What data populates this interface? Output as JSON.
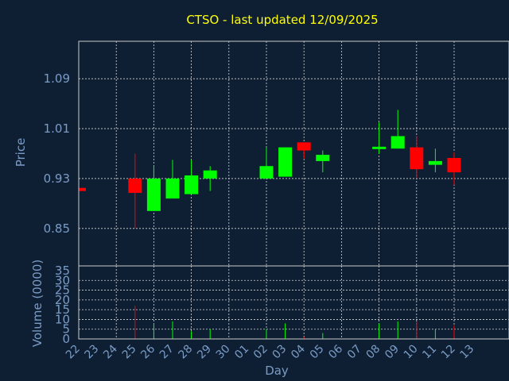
{
  "chart_data": {
    "type": "candlestick",
    "title": "CTSO - last updated 12/09/2025",
    "xlabel": "Day",
    "ylabel": "Price",
    "volume_label": "Volume (0000)",
    "ylim": [
      0.79,
      1.15
    ],
    "yticks": [
      0.85,
      0.93,
      1.01,
      1.09
    ],
    "ytick_labels": [
      "0.85",
      "0.93",
      "1.01",
      "1.09"
    ],
    "volume_ylim": [
      0,
      35
    ],
    "volume_ticks": [
      0,
      5,
      10,
      15,
      20,
      25,
      30,
      35
    ],
    "volume_tick_labels": [
      "0",
      "5",
      "10",
      "15",
      "20",
      "25",
      "30",
      "35"
    ],
    "x_labels": [
      "22",
      "23",
      "24",
      "25",
      "26",
      "27",
      "28",
      "29",
      "30",
      "01",
      "02",
      "03",
      "04",
      "05",
      "06",
      "07",
      "08",
      "09",
      "10",
      "11",
      "12",
      "13"
    ],
    "up_color": "#00ff00",
    "down_color": "#ff0000",
    "candles": [
      {
        "day": "22",
        "open": 0.915,
        "high": 0.915,
        "low": 0.91,
        "close": 0.91,
        "volume": 0
      },
      {
        "day": "25",
        "open": 0.93,
        "high": 0.97,
        "low": 0.85,
        "close": 0.907,
        "volume": 17
      },
      {
        "day": "26",
        "open": 0.878,
        "high": 0.95,
        "low": 0.878,
        "close": 0.93,
        "volume": 8
      },
      {
        "day": "27",
        "open": 0.898,
        "high": 0.96,
        "low": 0.898,
        "close": 0.93,
        "volume": 9
      },
      {
        "day": "28",
        "open": 0.905,
        "high": 0.96,
        "low": 0.905,
        "close": 0.935,
        "volume": 4
      },
      {
        "day": "29",
        "open": 0.93,
        "high": 0.95,
        "low": 0.91,
        "close": 0.943,
        "volume": 5
      },
      {
        "day": "02",
        "open": 0.93,
        "high": 0.98,
        "low": 0.93,
        "close": 0.95,
        "volume": 5
      },
      {
        "day": "03",
        "open": 0.933,
        "high": 0.98,
        "low": 0.933,
        "close": 0.98,
        "volume": 8
      },
      {
        "day": "04",
        "open": 0.988,
        "high": 0.988,
        "low": 0.962,
        "close": 0.975,
        "volume": 1
      },
      {
        "day": "05",
        "open": 0.958,
        "high": 0.975,
        "low": 0.94,
        "close": 0.968,
        "volume": 3
      },
      {
        "day": "08",
        "open": 0.978,
        "high": 1.02,
        "low": 0.97,
        "close": 0.981,
        "volume": 8
      },
      {
        "day": "09",
        "open": 0.978,
        "high": 1.04,
        "low": 0.978,
        "close": 0.998,
        "volume": 9
      },
      {
        "day": "10",
        "open": 0.98,
        "high": 0.998,
        "low": 0.93,
        "close": 0.945,
        "volume": 9
      },
      {
        "day": "11",
        "open": 0.952,
        "high": 0.978,
        "low": 0.94,
        "close": 0.958,
        "volume": 5
      },
      {
        "day": "12",
        "open": 0.963,
        "high": 0.972,
        "low": 0.92,
        "close": 0.94,
        "volume": 7
      }
    ]
  }
}
